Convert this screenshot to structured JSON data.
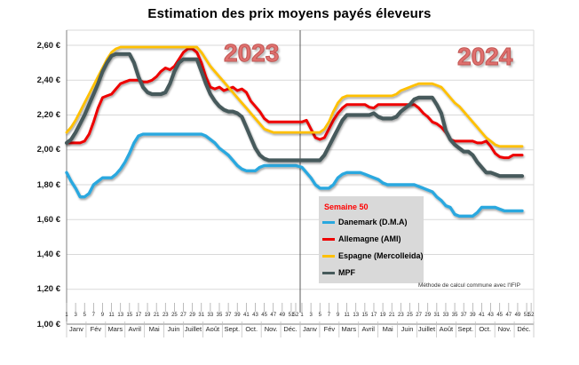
{
  "title": "Estimation des prix moyens payés éleveurs",
  "footnote": "Méthode de calcul commune avec l'IFIP",
  "legend": {
    "header": "Semaine 50",
    "items": [
      {
        "label": "Danemark (D.M.A)",
        "color": "#29A8DF"
      },
      {
        "label": "Allemagne (AMI)",
        "color": "#EE0000"
      },
      {
        "label": "Espagne (Mercolleida)",
        "color": "#FFC000"
      },
      {
        "label": "MPF",
        "color": "#475A5B"
      }
    ]
  },
  "colors": {
    "grid": "#D9D9D9",
    "axis": "#808080",
    "divider": "#595959",
    "tick": "#A6A6A6",
    "year_label": "#E0716F",
    "legend_bg": "#D9D9D9",
    "semaine_red": "#FF0000"
  },
  "chart_data": {
    "type": "line",
    "title": "Estimation des prix moyens payés éleveurs",
    "ylim": [
      1.0,
      2.6
    ],
    "y_ticks": [
      "2,60 €",
      "2,40 €",
      "2,20 €",
      "2,00 €",
      "1,80 €",
      "1,60 €",
      "1,40 €",
      "1,20 €",
      "1,00 €"
    ],
    "x_week_ticks": [
      "1",
      "3",
      "5",
      "7",
      "9",
      "11",
      "13",
      "15",
      "17",
      "19",
      "21",
      "23",
      "25",
      "27",
      "29",
      "31",
      "33",
      "35",
      "37",
      "39",
      "41",
      "43",
      "45",
      "47",
      "49",
      "51",
      "52"
    ],
    "months": [
      "Janv",
      "Fév",
      "Mars",
      "Avril",
      "Mai",
      "Juin",
      "Juillet",
      "Août",
      "Sept.",
      "Oct.",
      "Nov.",
      "Déc."
    ],
    "years": [
      {
        "label": "2023",
        "weeks": 52
      },
      {
        "label": "2024",
        "weeks": 50
      }
    ],
    "grid": "horizontal-only",
    "legend_position": "inside-bottom-center",
    "series": [
      {
        "name": "Danemark (D.M.A)",
        "color": "#29A8DF",
        "width": 3.4,
        "y2023": [
          1.87,
          1.82,
          1.78,
          1.73,
          1.73,
          1.75,
          1.8,
          1.82,
          1.84,
          1.84,
          1.84,
          1.86,
          1.89,
          1.93,
          1.98,
          2.04,
          2.08,
          2.09,
          2.09,
          2.09,
          2.09,
          2.09,
          2.09,
          2.09,
          2.09,
          2.09,
          2.09,
          2.09,
          2.09,
          2.09,
          2.09,
          2.08,
          2.06,
          2.04,
          2.01,
          1.99,
          1.97,
          1.94,
          1.91,
          1.89,
          1.88,
          1.88,
          1.88,
          1.9,
          1.91,
          1.91,
          1.91,
          1.91,
          1.91,
          1.91,
          1.91,
          1.91
        ],
        "y2024": [
          1.9,
          1.87,
          1.84,
          1.8,
          1.78,
          1.78,
          1.78,
          1.8,
          1.84,
          1.86,
          1.87,
          1.87,
          1.87,
          1.87,
          1.86,
          1.85,
          1.84,
          1.83,
          1.81,
          1.8,
          1.8,
          1.8,
          1.8,
          1.8,
          1.8,
          1.8,
          1.79,
          1.78,
          1.77,
          1.76,
          1.73,
          1.71,
          1.68,
          1.67,
          1.63,
          1.62,
          1.62,
          1.62,
          1.62,
          1.64,
          1.67,
          1.67,
          1.67,
          1.67,
          1.66,
          1.65,
          1.65,
          1.65,
          1.65,
          1.65
        ]
      },
      {
        "name": "Allemagne (AMI)",
        "color": "#EE0000",
        "width": 3.0,
        "y2023": [
          2.04,
          2.04,
          2.04,
          2.04,
          2.05,
          2.09,
          2.16,
          2.24,
          2.3,
          2.31,
          2.32,
          2.35,
          2.38,
          2.39,
          2.4,
          2.4,
          2.4,
          2.39,
          2.39,
          2.4,
          2.42,
          2.45,
          2.47,
          2.46,
          2.48,
          2.52,
          2.56,
          2.58,
          2.58,
          2.56,
          2.5,
          2.42,
          2.36,
          2.35,
          2.36,
          2.34,
          2.35,
          2.36,
          2.34,
          2.35,
          2.33,
          2.28,
          2.25,
          2.22,
          2.18,
          2.16,
          2.16,
          2.16,
          2.16,
          2.16,
          2.16,
          2.16
        ],
        "y2024": [
          2.16,
          2.17,
          2.12,
          2.07,
          2.06,
          2.07,
          2.12,
          2.17,
          2.21,
          2.24,
          2.26,
          2.26,
          2.26,
          2.26,
          2.26,
          2.245,
          2.24,
          2.26,
          2.26,
          2.26,
          2.26,
          2.26,
          2.26,
          2.26,
          2.26,
          2.26,
          2.24,
          2.21,
          2.19,
          2.16,
          2.15,
          2.13,
          2.1,
          2.06,
          2.05,
          2.05,
          2.05,
          2.05,
          2.05,
          2.04,
          2.04,
          2.05,
          2.02,
          1.98,
          1.96,
          1.955,
          1.955,
          1.97,
          1.97,
          1.97
        ]
      },
      {
        "name": "Espagne (Mercolleida)",
        "color": "#FFC000",
        "width": 2.8,
        "y2023": [
          2.1,
          2.13,
          2.17,
          2.22,
          2.27,
          2.32,
          2.37,
          2.42,
          2.47,
          2.52,
          2.56,
          2.58,
          2.59,
          2.59,
          2.59,
          2.59,
          2.59,
          2.59,
          2.59,
          2.59,
          2.59,
          2.59,
          2.59,
          2.59,
          2.59,
          2.59,
          2.59,
          2.59,
          2.59,
          2.59,
          2.56,
          2.52,
          2.48,
          2.45,
          2.42,
          2.39,
          2.36,
          2.33,
          2.3,
          2.27,
          2.24,
          2.21,
          2.18,
          2.15,
          2.12,
          2.11,
          2.1,
          2.1,
          2.1,
          2.1,
          2.1,
          2.1
        ],
        "y2024": [
          2.1,
          2.1,
          2.1,
          2.1,
          2.1,
          2.12,
          2.16,
          2.22,
          2.27,
          2.3,
          2.31,
          2.31,
          2.31,
          2.31,
          2.31,
          2.31,
          2.31,
          2.31,
          2.31,
          2.31,
          2.31,
          2.32,
          2.34,
          2.35,
          2.36,
          2.37,
          2.38,
          2.38,
          2.38,
          2.38,
          2.37,
          2.36,
          2.33,
          2.3,
          2.27,
          2.25,
          2.22,
          2.19,
          2.16,
          2.13,
          2.1,
          2.07,
          2.05,
          2.03,
          2.02,
          2.02,
          2.02,
          2.02,
          2.02,
          2.02
        ]
      },
      {
        "name": "MPF",
        "color": "#475A5B",
        "width": 4.2,
        "y2023": [
          2.04,
          2.06,
          2.1,
          2.15,
          2.2,
          2.26,
          2.32,
          2.38,
          2.45,
          2.5,
          2.54,
          2.55,
          2.55,
          2.55,
          2.55,
          2.5,
          2.42,
          2.36,
          2.33,
          2.32,
          2.32,
          2.32,
          2.33,
          2.38,
          2.45,
          2.5,
          2.52,
          2.52,
          2.52,
          2.52,
          2.45,
          2.38,
          2.32,
          2.28,
          2.25,
          2.23,
          2.22,
          2.22,
          2.21,
          2.19,
          2.13,
          2.07,
          2.01,
          1.97,
          1.95,
          1.94,
          1.94,
          1.94,
          1.94,
          1.94,
          1.94,
          1.94
        ],
        "y2024": [
          1.94,
          1.94,
          1.94,
          1.94,
          1.94,
          1.97,
          2.02,
          2.07,
          2.12,
          2.17,
          2.2,
          2.2,
          2.2,
          2.2,
          2.2,
          2.2,
          2.21,
          2.19,
          2.18,
          2.18,
          2.18,
          2.19,
          2.22,
          2.24,
          2.26,
          2.29,
          2.3,
          2.3,
          2.3,
          2.3,
          2.26,
          2.21,
          2.11,
          2.06,
          2.03,
          2.01,
          1.99,
          1.99,
          1.97,
          1.93,
          1.9,
          1.87,
          1.87,
          1.86,
          1.85,
          1.85,
          1.85,
          1.85,
          1.85,
          1.85
        ]
      }
    ]
  }
}
